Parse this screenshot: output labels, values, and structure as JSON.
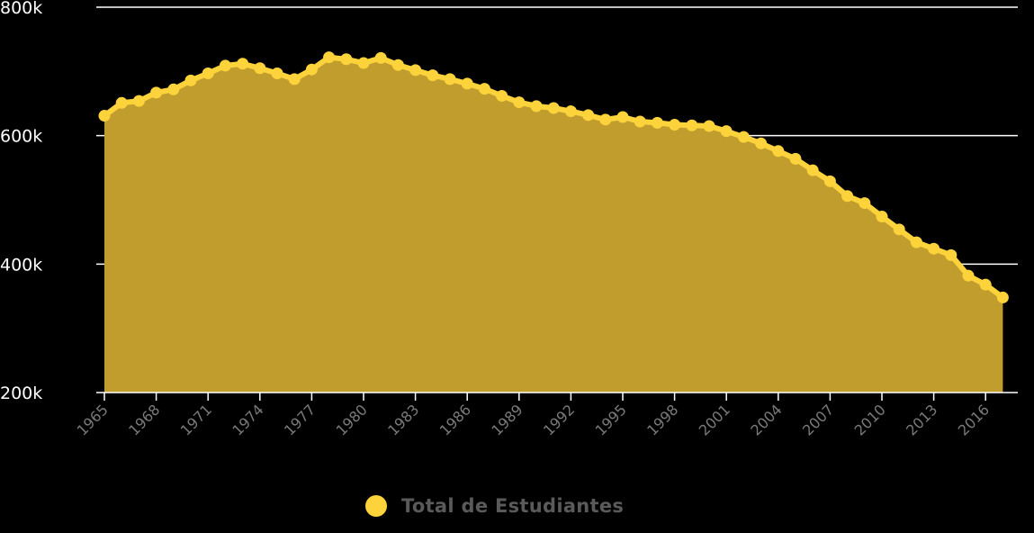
{
  "chart_data": {
    "type": "area",
    "title": "",
    "xlabel": "",
    "ylabel": "",
    "x": [
      1965,
      1966,
      1967,
      1968,
      1969,
      1970,
      1971,
      1972,
      1973,
      1974,
      1975,
      1976,
      1977,
      1978,
      1979,
      1980,
      1981,
      1982,
      1983,
      1984,
      1985,
      1986,
      1987,
      1988,
      1989,
      1990,
      1991,
      1992,
      1993,
      1994,
      1995,
      1996,
      1997,
      1998,
      1999,
      2000,
      2001,
      2002,
      2003,
      2004,
      2005,
      2006,
      2007,
      2008,
      2009,
      2010,
      2011,
      2012,
      2013,
      2014,
      2015,
      2016,
      2017
    ],
    "series": [
      {
        "name": "Total de Estudiantes",
        "values": [
          631000,
          651000,
          654000,
          667000,
          672000,
          686000,
          697000,
          709000,
          712000,
          705000,
          697000,
          688000,
          703000,
          722000,
          719000,
          713000,
          721000,
          710000,
          702000,
          694000,
          688000,
          681000,
          673000,
          662000,
          652000,
          646000,
          643000,
          638000,
          632000,
          625000,
          629000,
          622000,
          620000,
          617000,
          616000,
          615000,
          607000,
          598000,
          588000,
          576000,
          564000,
          546000,
          529000,
          506000,
          495000,
          474000,
          454000,
          434000,
          424000,
          414000,
          382000,
          368000,
          348000
        ],
        "fill_color": "#c19d2e",
        "line_color": "#fdd33c"
      }
    ],
    "ylim": [
      200000,
      800000
    ],
    "y_ticks": [
      {
        "value": 200000,
        "label": "200k"
      },
      {
        "value": 400000,
        "label": "400k"
      },
      {
        "value": 600000,
        "label": "600k"
      },
      {
        "value": 800000,
        "label": "800k"
      }
    ],
    "x_tick_labels": [
      "1965",
      "1968",
      "1971",
      "1974",
      "1977",
      "1980",
      "1983",
      "1986",
      "1989",
      "1992",
      "1995",
      "1998",
      "2001",
      "2004",
      "2007",
      "2010",
      "2013",
      "2016"
    ],
    "x_tick_step": 3,
    "grid": true,
    "legend_position": "bottom-center"
  },
  "legend": {
    "label": "Total de Estudiantes",
    "swatch_color": "#fdd33c"
  },
  "colors": {
    "background": "#000000",
    "grid": "#ffffff",
    "axis_line": "#ffffff",
    "y_tick_text": "#ffffff",
    "x_tick_text": "#7a7a7a"
  }
}
